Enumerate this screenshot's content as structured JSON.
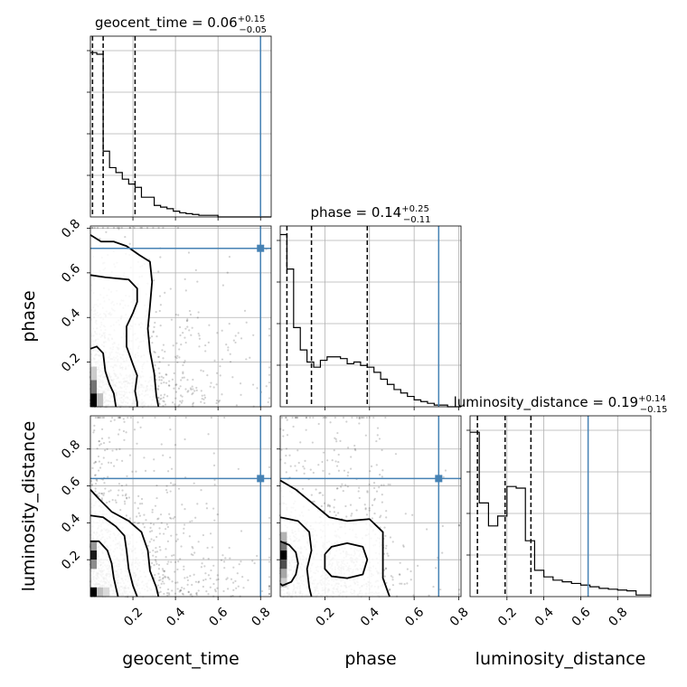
{
  "chart_data": {
    "type": "corner",
    "parameters": [
      "geocent_time",
      "phase",
      "luminosity_distance"
    ],
    "truth": {
      "color": "#4682b4",
      "values": {
        "geocent_time": 0.8,
        "phase": 0.71,
        "luminosity_distance": 0.64
      }
    },
    "axes": {
      "geocent_time": {
        "label": "geocent_time",
        "range": [
          0.0,
          0.85
        ],
        "ticks": [
          0.2,
          0.4,
          0.6,
          0.8
        ],
        "tick_labels": [
          "0.2",
          "0.4",
          "0.6",
          "0.8"
        ]
      },
      "phase": {
        "label": "phase",
        "range": [
          0.0,
          0.81
        ],
        "ticks": [
          0.2,
          0.4,
          0.6,
          0.8
        ],
        "tick_labels": [
          "0.2",
          "0.4",
          "0.6",
          "0.8"
        ]
      },
      "luminosity_distance": {
        "label": "luminosity_distance",
        "range": [
          0.0,
          0.98
        ],
        "ticks": [
          0.2,
          0.4,
          0.6,
          0.8
        ],
        "tick_labels": [
          "0.2",
          "0.4",
          "0.6",
          "0.8"
        ]
      }
    },
    "marginals": [
      {
        "parameter": "geocent_time",
        "title": "geocent_time = 0.06",
        "sup": "+0.15",
        "sub": "−0.05",
        "quantiles": [
          0.01,
          0.06,
          0.21
        ],
        "hist_bins": [
          0.0,
          0.03,
          0.06,
          0.09,
          0.12,
          0.15,
          0.18,
          0.21,
          0.24,
          0.27,
          0.3,
          0.33,
          0.36,
          0.39,
          0.42,
          0.45,
          0.48,
          0.51,
          0.54,
          0.57,
          0.6,
          0.85
        ],
        "hist_counts": [
          1.0,
          0.99,
          0.4,
          0.3,
          0.27,
          0.23,
          0.2,
          0.18,
          0.12,
          0.12,
          0.07,
          0.06,
          0.05,
          0.035,
          0.025,
          0.02,
          0.015,
          0.01,
          0.01,
          0.01,
          0.0
        ],
        "ylim": [
          0,
          1.1
        ]
      },
      {
        "parameter": "phase",
        "title": "phase = 0.14",
        "sup": "+0.25",
        "sub": "−0.11",
        "quantiles": [
          0.03,
          0.14,
          0.39
        ],
        "hist_bins": [
          0.0,
          0.03,
          0.06,
          0.09,
          0.12,
          0.15,
          0.18,
          0.21,
          0.24,
          0.27,
          0.3,
          0.33,
          0.36,
          0.39,
          0.42,
          0.45,
          0.48,
          0.51,
          0.54,
          0.57,
          0.6,
          0.63,
          0.66,
          0.69,
          0.72,
          0.75,
          0.81
        ],
        "hist_counts": [
          1.0,
          0.8,
          0.46,
          0.33,
          0.26,
          0.23,
          0.27,
          0.29,
          0.29,
          0.28,
          0.25,
          0.26,
          0.24,
          0.23,
          0.2,
          0.16,
          0.13,
          0.1,
          0.08,
          0.06,
          0.04,
          0.03,
          0.02,
          0.01,
          0.01,
          0.0
        ],
        "ylim": [
          0,
          1.05
        ]
      },
      {
        "parameter": "luminosity_distance",
        "title": "luminosity_distance = 0.19",
        "sup": "+0.14",
        "sub": "−0.15",
        "quantiles": [
          0.04,
          0.19,
          0.33
        ],
        "hist_bins": [
          0.0,
          0.05,
          0.1,
          0.15,
          0.2,
          0.25,
          0.3,
          0.35,
          0.4,
          0.45,
          0.5,
          0.55,
          0.6,
          0.65,
          0.7,
          0.75,
          0.8,
          0.85,
          0.9,
          0.98
        ],
        "hist_counts": [
          1.0,
          0.57,
          0.43,
          0.49,
          0.67,
          0.66,
          0.34,
          0.16,
          0.12,
          0.1,
          0.09,
          0.08,
          0.07,
          0.06,
          0.05,
          0.045,
          0.04,
          0.035,
          0.01
        ],
        "ylim": [
          0,
          1.1
        ]
      }
    ],
    "joints": [
      {
        "x": "geocent_time",
        "y": "phase",
        "density_cells": [
          {
            "x": 0.0,
            "y": 0.0,
            "w": 0.03,
            "h": 0.06,
            "shade": 0.0
          },
          {
            "x": 0.0,
            "y": 0.06,
            "w": 0.03,
            "h": 0.06,
            "shade": 0.45
          },
          {
            "x": 0.03,
            "y": 0.0,
            "w": 0.03,
            "h": 0.06,
            "shade": 0.75
          },
          {
            "x": 0.0,
            "y": 0.12,
            "w": 0.03,
            "h": 0.06,
            "shade": 0.8
          }
        ],
        "contours": [
          [
            [
              0.0,
              0.26
            ],
            [
              0.03,
              0.27
            ],
            [
              0.06,
              0.24
            ],
            [
              0.07,
              0.16
            ],
            [
              0.09,
              0.1
            ],
            [
              0.11,
              0.06
            ],
            [
              0.12,
              0.0
            ]
          ],
          [
            [
              0.0,
              0.59
            ],
            [
              0.07,
              0.58
            ],
            [
              0.18,
              0.57
            ],
            [
              0.22,
              0.53
            ],
            [
              0.22,
              0.47
            ],
            [
              0.2,
              0.42
            ],
            [
              0.17,
              0.36
            ],
            [
              0.17,
              0.27
            ],
            [
              0.2,
              0.19
            ],
            [
              0.22,
              0.14
            ],
            [
              0.21,
              0.07
            ],
            [
              0.22,
              0.02
            ],
            [
              0.22,
              0.0
            ]
          ],
          [
            [
              0.0,
              0.77
            ],
            [
              0.05,
              0.74
            ],
            [
              0.11,
              0.74
            ],
            [
              0.17,
              0.72
            ],
            [
              0.23,
              0.68
            ],
            [
              0.28,
              0.65
            ],
            [
              0.29,
              0.56
            ],
            [
              0.28,
              0.45
            ],
            [
              0.27,
              0.35
            ],
            [
              0.28,
              0.25
            ],
            [
              0.3,
              0.15
            ],
            [
              0.31,
              0.05
            ],
            [
              0.32,
              0.0
            ]
          ]
        ]
      },
      {
        "x": "geocent_time",
        "y": "luminosity_distance",
        "density_cells": [
          {
            "x": 0.0,
            "y": 0.0,
            "w": 0.03,
            "h": 0.05,
            "shade": 0.0
          },
          {
            "x": 0.0,
            "y": 0.2,
            "w": 0.03,
            "h": 0.05,
            "shade": 0.1
          },
          {
            "x": 0.0,
            "y": 0.15,
            "w": 0.03,
            "h": 0.05,
            "shade": 0.55
          },
          {
            "x": 0.0,
            "y": 0.25,
            "w": 0.03,
            "h": 0.05,
            "shade": 0.6
          },
          {
            "x": 0.03,
            "y": 0.0,
            "w": 0.03,
            "h": 0.05,
            "shade": 0.75
          },
          {
            "x": 0.06,
            "y": 0.0,
            "w": 0.03,
            "h": 0.05,
            "shade": 0.85
          }
        ],
        "contours": [
          [
            [
              0.0,
              0.3
            ],
            [
              0.04,
              0.3
            ],
            [
              0.08,
              0.25
            ],
            [
              0.1,
              0.18
            ],
            [
              0.11,
              0.1
            ],
            [
              0.12,
              0.05
            ],
            [
              0.13,
              0.0
            ]
          ],
          [
            [
              0.0,
              0.44
            ],
            [
              0.06,
              0.43
            ],
            [
              0.12,
              0.38
            ],
            [
              0.16,
              0.33
            ],
            [
              0.17,
              0.25
            ],
            [
              0.18,
              0.15
            ],
            [
              0.2,
              0.06
            ],
            [
              0.22,
              0.0
            ]
          ],
          [
            [
              0.0,
              0.58
            ],
            [
              0.04,
              0.53
            ],
            [
              0.1,
              0.46
            ],
            [
              0.18,
              0.41
            ],
            [
              0.24,
              0.35
            ],
            [
              0.27,
              0.25
            ],
            [
              0.28,
              0.14
            ],
            [
              0.31,
              0.05
            ],
            [
              0.32,
              0.0
            ]
          ]
        ]
      },
      {
        "x": "phase",
        "y": "luminosity_distance",
        "density_cells": [
          {
            "x": 0.0,
            "y": 0.2,
            "w": 0.03,
            "h": 0.05,
            "shade": 0.0
          },
          {
            "x": 0.0,
            "y": 0.15,
            "w": 0.03,
            "h": 0.05,
            "shade": 0.3
          },
          {
            "x": 0.0,
            "y": 0.25,
            "w": 0.03,
            "h": 0.05,
            "shade": 0.45
          },
          {
            "x": 0.0,
            "y": 0.1,
            "w": 0.03,
            "h": 0.05,
            "shade": 0.65
          },
          {
            "x": 0.0,
            "y": 0.3,
            "w": 0.03,
            "h": 0.05,
            "shade": 0.7
          },
          {
            "x": 0.0,
            "y": 0.05,
            "w": 0.03,
            "h": 0.05,
            "shade": 0.8
          }
        ],
        "contours": [
          [
            [
              0.0,
              0.3
            ],
            [
              0.04,
              0.28
            ],
            [
              0.07,
              0.24
            ],
            [
              0.08,
              0.18
            ],
            [
              0.07,
              0.12
            ],
            [
              0.05,
              0.08
            ],
            [
              0.01,
              0.06
            ],
            [
              0.0,
              0.07
            ]
          ],
          [
            [
              0.0,
              0.43
            ],
            [
              0.08,
              0.41
            ],
            [
              0.13,
              0.35
            ],
            [
              0.14,
              0.25
            ],
            [
              0.12,
              0.15
            ],
            [
              0.13,
              0.05
            ],
            [
              0.14,
              0.0
            ]
          ],
          [
            [
              0.2,
              0.23
            ],
            [
              0.23,
              0.27
            ],
            [
              0.3,
              0.29
            ],
            [
              0.37,
              0.27
            ],
            [
              0.39,
              0.2
            ],
            [
              0.37,
              0.12
            ],
            [
              0.3,
              0.1
            ],
            [
              0.23,
              0.11
            ],
            [
              0.2,
              0.15
            ],
            [
              0.2,
              0.23
            ]
          ],
          [
            [
              0.0,
              0.63
            ],
            [
              0.07,
              0.58
            ],
            [
              0.15,
              0.5
            ],
            [
              0.22,
              0.43
            ],
            [
              0.3,
              0.41
            ],
            [
              0.4,
              0.42
            ],
            [
              0.46,
              0.35
            ],
            [
              0.46,
              0.2
            ],
            [
              0.46,
              0.1
            ],
            [
              0.49,
              0.0
            ]
          ]
        ]
      }
    ]
  }
}
